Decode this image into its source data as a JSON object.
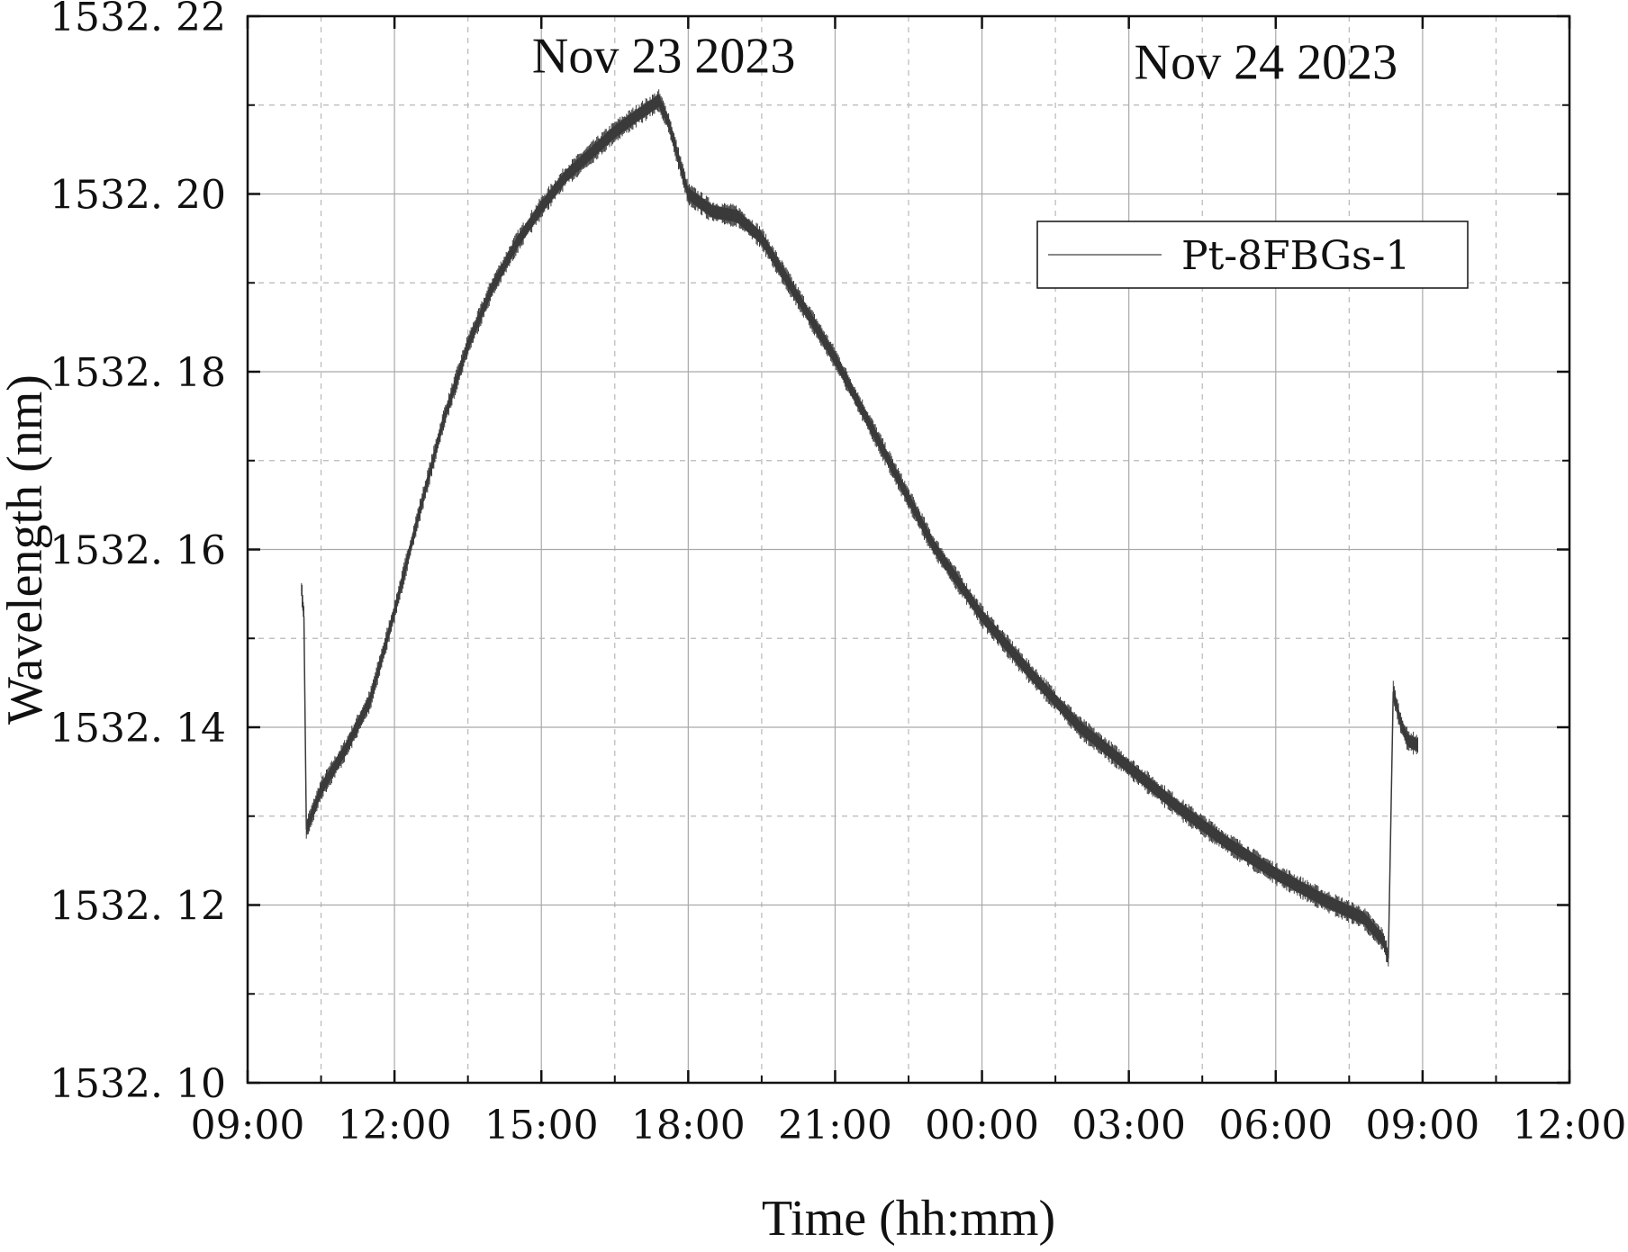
{
  "chart_data": {
    "type": "line",
    "title": "",
    "xlabel": "Time (hh:mm)",
    "ylabel": "Wavelength (nm)",
    "xlim": [
      0,
      27
    ],
    "ylim": [
      1532.1,
      1532.22
    ],
    "x_unit": "hours since Nov 23 2023 09:00",
    "x_ticks": [
      0,
      3,
      6,
      9,
      12,
      15,
      18,
      21,
      24,
      27
    ],
    "x_tick_labels": [
      "09:00",
      "12:00",
      "15:00",
      "18:00",
      "21:00",
      "00:00",
      "03:00",
      "06:00",
      "09:00",
      "12:00"
    ],
    "y_ticks": [
      1532.1,
      1532.12,
      1532.14,
      1532.16,
      1532.18,
      1532.2,
      1532.22
    ],
    "y_tick_labels": [
      "1532. 10",
      "1532. 12",
      "1532. 14",
      "1532. 16",
      "1532. 18",
      "1532. 20",
      "1532. 22"
    ],
    "grid": true,
    "legend_position": "upper-right",
    "annotations": [
      {
        "text": "Nov 23 2023",
        "x": 8.5,
        "y": 1532.2155
      },
      {
        "text": "Nov 24 2023",
        "x": 20.8,
        "y": 1532.2148
      }
    ],
    "series": [
      {
        "name": "Pt-8FBGs-1",
        "color": "#3a3a3a",
        "band_width_nm": 0.0014,
        "segments": [
          {
            "x": [
              1.1,
              1.15
            ],
            "y": [
              1532.1555,
              1532.1525
            ]
          },
          {
            "x": [
              1.2,
              1.5,
              2.0,
              2.5,
              3.0,
              3.5,
              4.0,
              4.5,
              5.0,
              5.5,
              6.0,
              6.5,
              7.0,
              7.5,
              8.0,
              8.4,
              8.6,
              9.0,
              9.5,
              10.0,
              10.5,
              11.0,
              12.0,
              13.0,
              14.0,
              15.0,
              16.0,
              17.0,
              18.0,
              19.0,
              20.0,
              21.0,
              22.0,
              22.8,
              23.2,
              23.3
            ],
            "y": [
              1532.1285,
              1532.133,
              1532.1375,
              1532.143,
              1532.153,
              1532.164,
              1532.1745,
              1532.183,
              1532.1895,
              1532.1945,
              1532.1985,
              1532.202,
              1532.2045,
              1532.207,
              1532.209,
              1532.2105,
              1532.208,
              1532.2,
              1532.198,
              1532.1975,
              1532.195,
              1532.1905,
              1532.1815,
              1532.171,
              1532.1605,
              1532.1525,
              1532.146,
              1532.14,
              1532.1355,
              1532.131,
              1532.127,
              1532.1235,
              1532.1205,
              1532.1185,
              1532.116,
              1532.114
            ]
          },
          {
            "x": [
              23.4,
              23.55,
              23.7,
              23.9
            ],
            "y": [
              1532.144,
              1532.1405,
              1532.1385,
              1532.138
            ]
          }
        ]
      }
    ]
  }
}
